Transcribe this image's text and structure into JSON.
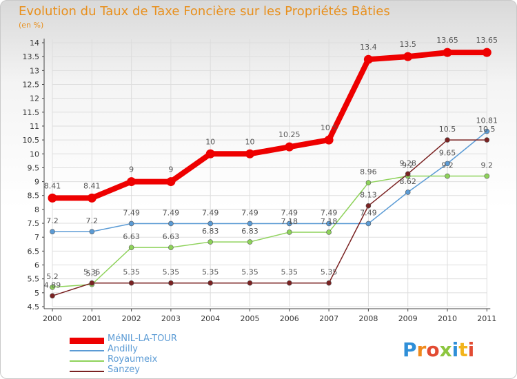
{
  "title": "Evolution du Taux de Taxe Foncière sur les Propriétés Bâties",
  "unit": "(en %)",
  "logo": {
    "text": [
      "P",
      "r",
      "o",
      "x",
      "i",
      "t",
      "i"
    ],
    "colors": [
      "#2f8fd8",
      "#f08a1c",
      "#e24b33",
      "#8cc63f",
      "#2f8fd8",
      "#f2b41c",
      "#e24b33"
    ]
  },
  "chart_data": {
    "type": "line",
    "title": "Evolution du Taux de Taxe Foncière sur les Propriétés Bâties",
    "ylabel": "(en %)",
    "xlabel": "",
    "x": [
      "2000",
      "2001",
      "2002",
      "2003",
      "2004",
      "2005",
      "2006",
      "2007",
      "2008",
      "2009",
      "2010",
      "2011"
    ],
    "ylim": [
      4.5,
      14
    ],
    "yticks": [
      "4.5",
      "5",
      "5.5",
      "6",
      "6.5",
      "7",
      "7.5",
      "8",
      "8.5",
      "9",
      "9.5",
      "10",
      "10.5",
      "11",
      "11.5",
      "12",
      "12.5",
      "13",
      "13.5",
      "14"
    ],
    "grid": true,
    "series": [
      {
        "name": "MéNIL-LA-TOUR",
        "color": "#ee0000",
        "values": [
          8.41,
          8.41,
          9,
          9,
          10,
          10,
          10.25,
          10.5,
          13.4,
          13.5,
          13.65,
          13.65
        ],
        "labels": [
          "8.41",
          "8.41",
          "9",
          "9",
          "10",
          "10",
          "10.25",
          "10.5",
          "13.4",
          "13.5",
          "13.65",
          "13.65"
        ]
      },
      {
        "name": "Andilly",
        "color": "#5b9bd5",
        "values": [
          7.2,
          7.2,
          7.49,
          7.49,
          7.49,
          7.49,
          7.49,
          7.49,
          7.49,
          8.62,
          9.65,
          10.81
        ],
        "labels": [
          "7.2",
          "7.2",
          "7.49",
          "7.49",
          "7.49",
          "7.49",
          "7.49",
          "7.49",
          "7.49",
          "8.62",
          "9.65",
          "10.81"
        ]
      },
      {
        "name": "Royaumeix",
        "color": "#8ed25a",
        "values": [
          5.2,
          5.3,
          6.63,
          6.63,
          6.83,
          6.83,
          7.18,
          7.18,
          8.96,
          9.2,
          9.2,
          9.2
        ],
        "labels": [
          "5.2",
          "5.3",
          "6.63",
          "6.63",
          "6.83",
          "6.83",
          "7.18",
          "7.18",
          "8.96",
          "9.2",
          "9.2",
          "9.2"
        ]
      },
      {
        "name": "Sanzey",
        "color": "#7a2222",
        "values": [
          4.89,
          5.35,
          5.35,
          5.35,
          5.35,
          5.35,
          5.35,
          5.35,
          8.13,
          9.28,
          10.5,
          10.5
        ],
        "labels": [
          "4.89",
          "5.35",
          "5.35",
          "5.35",
          "5.35",
          "5.35",
          "5.35",
          "5.35",
          "8.13",
          "9.28",
          "10.5",
          "10.5"
        ]
      }
    ]
  }
}
